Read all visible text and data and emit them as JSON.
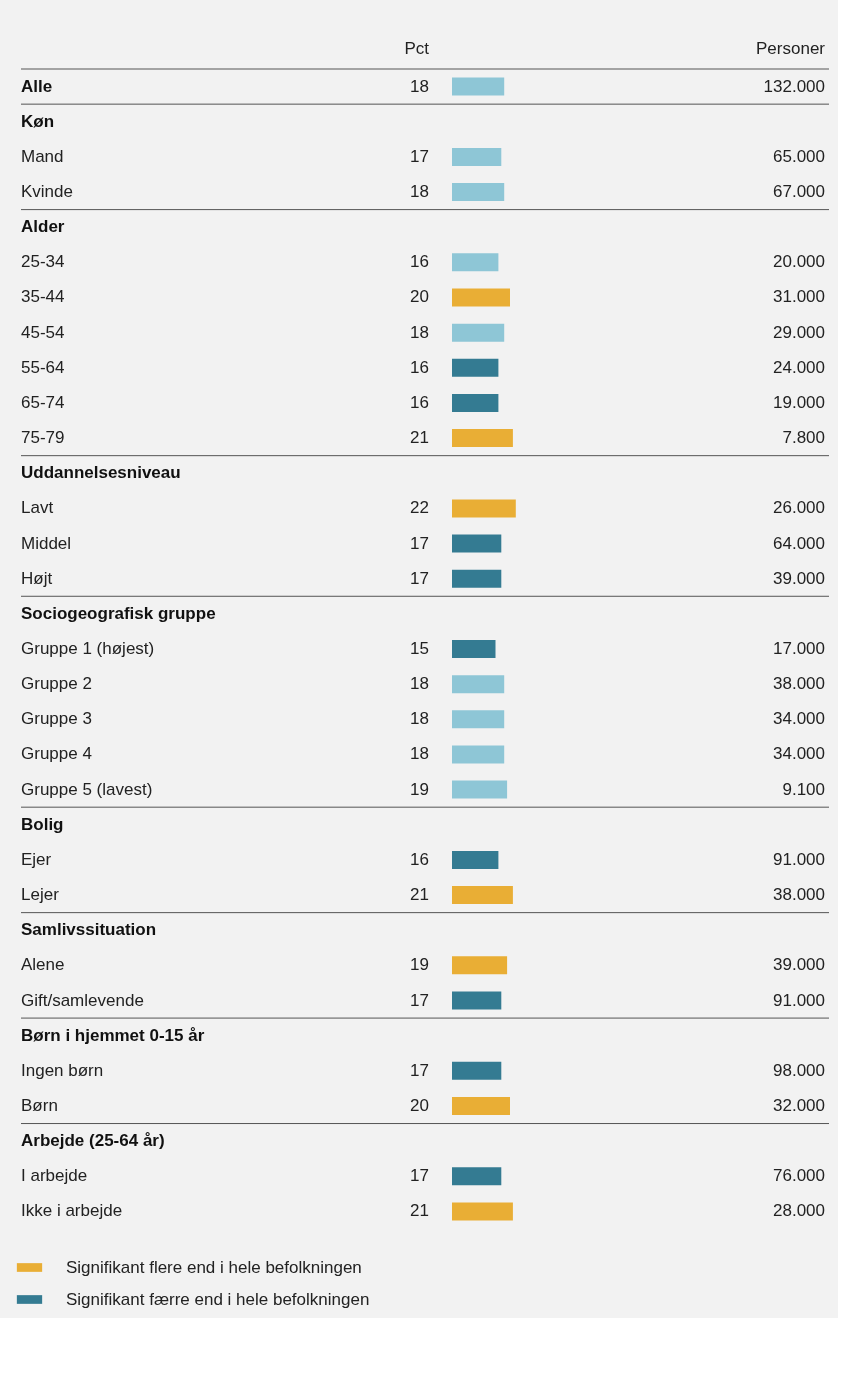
{
  "chart_data": {
    "type": "bar",
    "orientation": "horizontal",
    "data_labels": true,
    "legend": "bottom",
    "categories": [
      "Alle",
      "Køn",
      "Mand",
      "Kvinde",
      "Alder",
      "25-34",
      "35-44",
      "45-54",
      "55-64",
      "65-74",
      "75-79",
      "Uddannelsesniveau",
      "Lavt",
      "Middel",
      "Højt",
      "Sociogeografisk gruppe",
      "Gruppe 1 (højest)",
      "Gruppe 2",
      "Gruppe 3",
      "Gruppe 4",
      "Gruppe 5 (lavest)",
      "Bolig",
      "Ejer",
      "Lejer",
      "Samlivssituation",
      "Alene",
      "Gift/samlevende",
      "Børn i hjemmet 0-15 år",
      "Ingen børn",
      "Børn",
      "Arbejde (25-64 år)",
      "I arbejde",
      "Ikke i arbejde"
    ],
    "series": [
      {
        "name": "Signifikant flere end i hele befolkningen",
        "color": "#e9ae35",
        "values": [
          null,
          null,
          null,
          null,
          null,
          null,
          20,
          null,
          null,
          null,
          21,
          null,
          22,
          null,
          null,
          null,
          null,
          null,
          null,
          null,
          null,
          null,
          null,
          21,
          null,
          19,
          null,
          null,
          null,
          20,
          null,
          null,
          21
        ]
      },
      {
        "name": "Signifikant færre end i hele befolkningen",
        "color": "#347b92",
        "values": [
          null,
          null,
          null,
          null,
          null,
          null,
          null,
          null,
          16,
          16,
          null,
          null,
          null,
          17,
          17,
          null,
          15,
          null,
          null,
          null,
          null,
          null,
          16,
          null,
          null,
          null,
          17,
          null,
          17,
          null,
          null,
          17,
          null
        ]
      },
      {
        "color": "#8ec6d6",
        "values": [
          18,
          null,
          17,
          18,
          null,
          16,
          null,
          18,
          null,
          null,
          null,
          null,
          null,
          null,
          null,
          null,
          null,
          18,
          18,
          18,
          19,
          null,
          null,
          null,
          null,
          null,
          null,
          null,
          null,
          null,
          null,
          null,
          null
        ]
      }
    ],
    "annotations": [
      "Pct",
      "Personer",
      "132.000",
      "65.000",
      "67.000",
      "20.000",
      "31.000",
      "29.000",
      "24.000",
      "19.000",
      "7.800",
      "26.000",
      "64.000",
      "39.000",
      "17.000",
      "38.000",
      "34.000",
      "34.000",
      "9.100",
      "91.000",
      "38.000",
      "39.000",
      "91.000",
      "98.000",
      "32.000",
      "76.000",
      "28.000"
    ]
  }
}
